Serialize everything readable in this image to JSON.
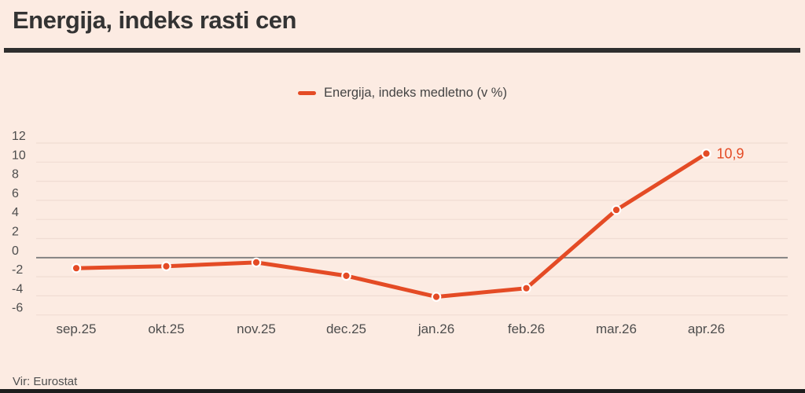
{
  "title": "Energija, indeks rasti cen",
  "legend": {
    "label": "Energija, indeks medletno (v %)"
  },
  "source": "Vir: Eurostat",
  "colors": {
    "accent": "#e44b25",
    "background": "#fcebe2",
    "gridline": "#f0dcd3",
    "zero_line": "#7d7d7d",
    "title_rule": "#2e2e2e",
    "bottom_bar": "#1d1d1d",
    "title_text": "#333333",
    "tick_text": "#4d4d4d",
    "source_text": "#505050"
  },
  "chart_data": {
    "type": "line",
    "title": "Energija, indeks rasti cen",
    "categories": [
      "sep.25",
      "okt.25",
      "nov.25",
      "dec.25",
      "jan.26",
      "feb.26",
      "mar.26",
      "apr.26"
    ],
    "series": [
      {
        "name": "Energija, indeks medletno (v %)",
        "values": [
          -1.1,
          -0.9,
          -0.5,
          -1.9,
          -4.1,
          -3.2,
          5.0,
          10.9
        ]
      }
    ],
    "end_label": "10,9",
    "xlabel": "",
    "ylabel": "",
    "yticks": [
      12,
      10,
      8,
      6,
      4,
      2,
      0,
      -2,
      -4,
      -6
    ],
    "ylim": [
      -6,
      12
    ],
    "grid": true,
    "zero_line": true,
    "legend_position": "top-center"
  }
}
